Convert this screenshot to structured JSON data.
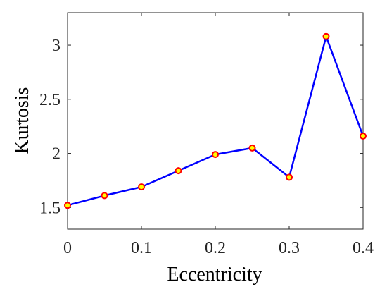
{
  "chart_data": {
    "type": "line",
    "xlabel": "Eccentricity",
    "ylabel": "Kurtosis",
    "xlim": [
      0,
      0.4
    ],
    "ylim": [
      1.3,
      3.3
    ],
    "xticks": [
      0,
      0.1,
      0.2,
      0.3,
      0.4
    ],
    "xtick_labels": [
      "0",
      "0.1",
      "0.2",
      "0.3",
      "0.4"
    ],
    "yticks": [
      1.5,
      2,
      2.5,
      3
    ],
    "ytick_labels": [
      "1.5",
      "2",
      "2.5",
      "3"
    ],
    "grid": false,
    "box": true,
    "series": [
      {
        "x": [
          0,
          0.05,
          0.1,
          0.15,
          0.2,
          0.25,
          0.3,
          0.35,
          0.4
        ],
        "y": [
          1.52,
          1.61,
          1.69,
          1.84,
          1.99,
          2.05,
          1.78,
          3.08,
          2.16
        ],
        "line_color": "#0000FF",
        "marker_edge_color": "#FF0000",
        "marker_face_color": "#FFFF00"
      }
    ]
  }
}
